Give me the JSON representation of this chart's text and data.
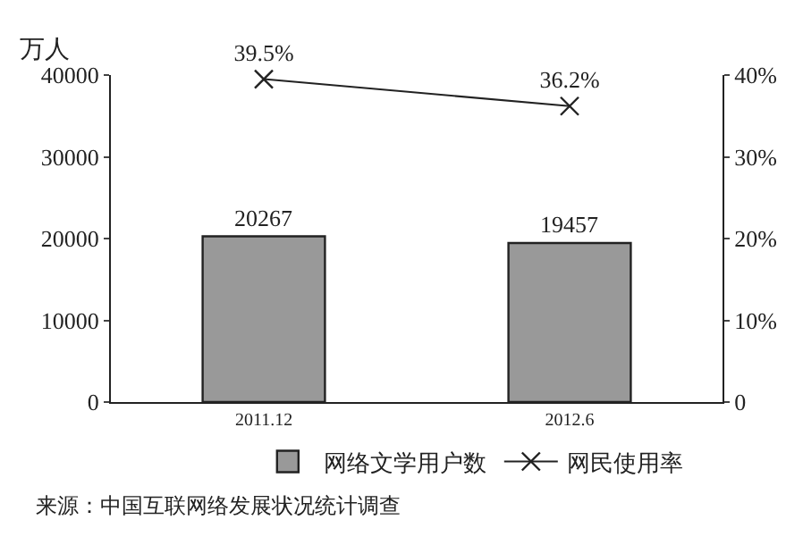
{
  "chart_data": {
    "type": "bar",
    "ylabel": "万人",
    "categories": [
      "2011.12",
      "2012.6"
    ],
    "series": [
      {
        "name": "网络文学用户数",
        "color": "#999999",
        "values": [
          20267,
          19457
        ],
        "value_labels": [
          "20267",
          "19457"
        ]
      },
      {
        "name": "网民使用率",
        "type": "line",
        "axis": "y2",
        "color": "#222222",
        "values": [
          39.5,
          36.2
        ],
        "value_labels": [
          "39.5%",
          "36.2%"
        ],
        "marker": "cross"
      }
    ],
    "ylim": [
      0,
      40000
    ],
    "yticks": [
      0,
      10000,
      20000,
      30000,
      40000
    ],
    "y2lim": [
      0,
      40
    ],
    "y2ticks": [
      {
        "value": 0,
        "label": "0"
      },
      {
        "value": 10,
        "label": "10%"
      },
      {
        "value": 20,
        "label": "20%"
      },
      {
        "value": 30,
        "label": "30%"
      },
      {
        "value": 40,
        "label": "40%"
      }
    ],
    "legend": "bottom",
    "annotations": [
      "来源：中国互联网络发展状况统计调查"
    ]
  }
}
